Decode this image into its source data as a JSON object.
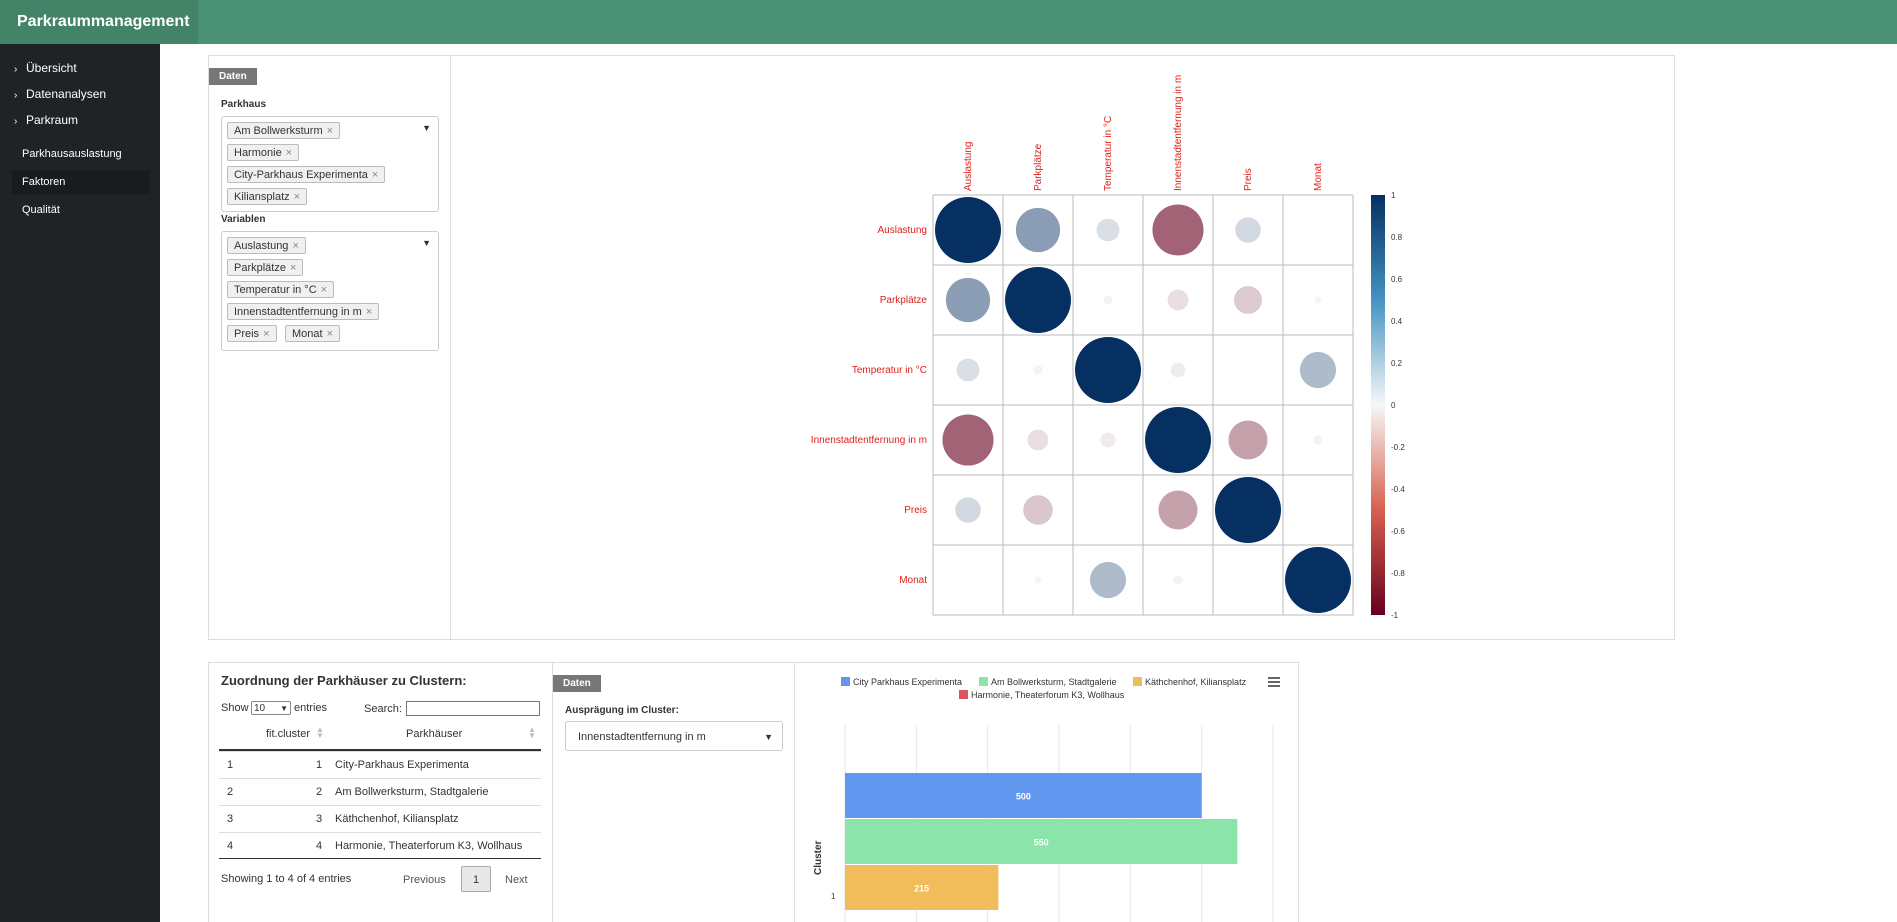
{
  "app": {
    "title": "Parkraummanagement"
  },
  "sidebar": {
    "items": [
      {
        "label": "Übersicht"
      },
      {
        "label": "Datenanalysen"
      },
      {
        "label": "Parkraum"
      }
    ],
    "subitems": [
      {
        "label": "Parkhausauslastung",
        "active": false
      },
      {
        "label": "Faktoren",
        "active": true
      },
      {
        "label": "Qualität",
        "active": false
      }
    ]
  },
  "filter_panel": {
    "tag": "Daten",
    "parkhaus_label": "Parkhaus",
    "parkhaus_chips": [
      "Am Bollwerksturm",
      "Harmonie",
      "City-Parkhaus Experimenta",
      "Kiliansplatz"
    ],
    "variablen_label": "Variablen",
    "variablen_chips": [
      "Auslastung",
      "Parkplätze",
      "Temperatur in °C",
      "Innenstadtentfernung in m",
      "Preis",
      "Monat"
    ],
    "remove_glyph": "×"
  },
  "corr_plot": {
    "variables": [
      "Auslastung",
      "Parkplätze",
      "Temperatur in °C",
      "Innenstadtentfernung in m",
      "Preis",
      "Monat"
    ],
    "matrix": [
      [
        1.0,
        0.45,
        0.12,
        -0.6,
        0.15,
        0.0
      ],
      [
        0.45,
        1.0,
        -0.02,
        -0.1,
        -0.18,
        -0.01
      ],
      [
        0.12,
        -0.02,
        1.0,
        -0.05,
        0.0,
        0.3
      ],
      [
        -0.6,
        -0.1,
        -0.05,
        1.0,
        -0.35,
        -0.02
      ],
      [
        0.15,
        -0.2,
        0.0,
        -0.35,
        1.0,
        0.0
      ],
      [
        0.0,
        -0.01,
        0.3,
        -0.02,
        0.0,
        1.0
      ]
    ],
    "colorbar_ticks": [
      "1",
      "0.8",
      "0.6",
      "0.4",
      "0.2",
      "0",
      "-0.2",
      "-0.4",
      "-0.6",
      "-0.8",
      "-1"
    ],
    "colors": {
      "pos_strong": "#053061",
      "neutral": "#f7f7f7",
      "neg_strong": "#67001f",
      "label": "#e0201a"
    }
  },
  "cluster_table": {
    "title": "Zuordnung der Parkhäuser zu Clustern:",
    "show_label": "Show",
    "entries_value": "10",
    "entries_label": "entries",
    "search_label": "Search:",
    "columns": [
      "fit.cluster",
      "Parkhäuser"
    ],
    "rows": [
      {
        "idx": "1",
        "cluster": "1",
        "name": "City-Parkhaus Experimenta"
      },
      {
        "idx": "2",
        "cluster": "2",
        "name": "Am Bollwerksturm, Stadtgalerie"
      },
      {
        "idx": "3",
        "cluster": "3",
        "name": "Käthchenhof, Kiliansplatz"
      },
      {
        "idx": "4",
        "cluster": "4",
        "name": "Harmonie, Theaterforum K3, Wollhaus"
      }
    ],
    "info": "Showing 1 to 4 of 4 entries",
    "previous": "Previous",
    "page": "1",
    "next": "Next"
  },
  "cluster_select": {
    "tag": "Daten",
    "label": "Ausprägung im Cluster:",
    "value": "Innenstadtentfernung in m"
  },
  "chart_data": {
    "type": "bar",
    "orientation": "horizontal",
    "series": [
      {
        "name": "City Parkhaus Experimenta",
        "color": "#6197ef",
        "values": [
          500
        ]
      },
      {
        "name": "Am Bollwerksturm, Stadtgalerie",
        "color": "#8be4a9",
        "values": [
          550
        ]
      },
      {
        "name": "Käthchenhof, Kiliansplatz",
        "color": "#f0bd5a",
        "values": [
          215
        ]
      },
      {
        "name": "Harmonie, Theaterforum K3, Wollhaus",
        "color": "#e0505e",
        "values": [
          null
        ]
      }
    ],
    "categories": [
      "1"
    ],
    "ylabel": "Cluster",
    "xlim": [
      0,
      600
    ],
    "grid": true,
    "legend": "top-center"
  }
}
